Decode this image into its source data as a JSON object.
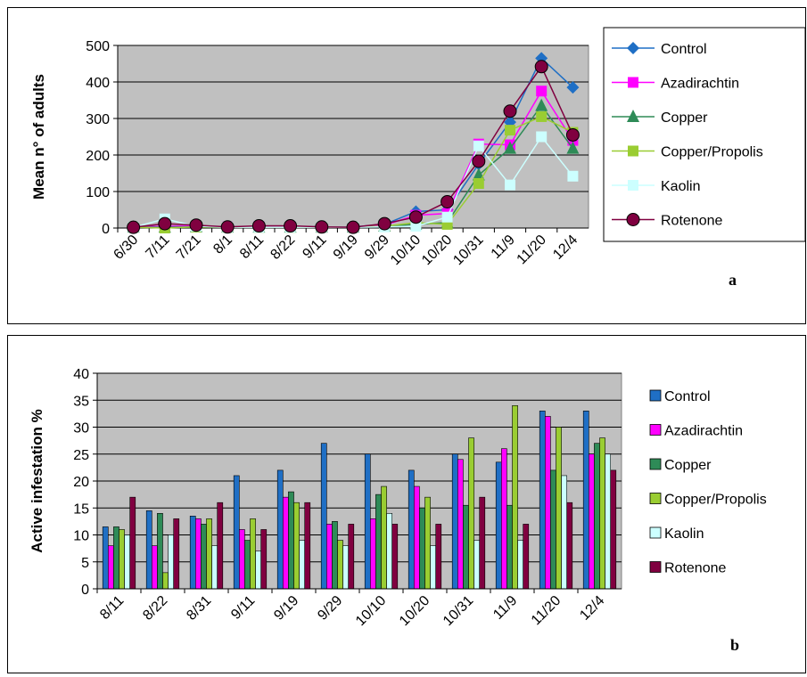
{
  "colors": {
    "plot_bg": "#C0C0C0",
    "Control": "#1F6FC5",
    "Azadirachtin": "#FF00FF",
    "Copper": "#2E8B57",
    "Copper/Propolis": "#9ACD32",
    "Kaolin": "#CCFFFF",
    "Rotenone": "#800040"
  },
  "chart_data": [
    {
      "type": "line",
      "panel_label": "a",
      "title": "",
      "xlabel": "",
      "ylabel": "Mean n° of adults",
      "ylim": [
        0,
        500
      ],
      "yticks": [
        0,
        100,
        200,
        300,
        400,
        500
      ],
      "grid": true,
      "legend": "right",
      "categories": [
        "6/30",
        "7/11",
        "7/21",
        "8/1",
        "8/11",
        "8/22",
        "9/11",
        "9/19",
        "9/29",
        "10/10",
        "10/20",
        "10/31",
        "11/9",
        "11/20",
        "12/4"
      ],
      "series": [
        {
          "name": "Control",
          "marker": "diamond",
          "values": [
            2,
            5,
            5,
            3,
            4,
            5,
            3,
            3,
            10,
            45,
            50,
            175,
            290,
            465,
            385
          ]
        },
        {
          "name": "Azadirachtin",
          "marker": "square",
          "values": [
            2,
            5,
            5,
            3,
            4,
            3,
            2,
            2,
            8,
            35,
            40,
            230,
            228,
            375,
            240
          ]
        },
        {
          "name": "Copper",
          "marker": "triangle",
          "values": [
            2,
            2,
            3,
            2,
            2,
            2,
            2,
            2,
            5,
            10,
            15,
            145,
            218,
            335,
            218
          ]
        },
        {
          "name": "Copper/Propolis",
          "marker": "square",
          "values": [
            2,
            0,
            3,
            2,
            2,
            2,
            2,
            2,
            5,
            15,
            10,
            122,
            268,
            305,
            262
          ]
        },
        {
          "name": "Kaolin",
          "marker": "square",
          "values": [
            2,
            25,
            5,
            2,
            2,
            2,
            2,
            2,
            3,
            5,
            30,
            225,
            118,
            250,
            142
          ]
        },
        {
          "name": "Rotenone",
          "marker": "circle",
          "values": [
            2,
            12,
            8,
            3,
            6,
            6,
            3,
            2,
            12,
            30,
            72,
            183,
            320,
            442,
            255
          ]
        }
      ]
    },
    {
      "type": "bar",
      "panel_label": "b",
      "title": "",
      "xlabel": "",
      "ylabel": "Active infestation %",
      "ylim": [
        0,
        40
      ],
      "yticks": [
        0,
        5,
        10,
        15,
        20,
        25,
        30,
        35,
        40
      ],
      "grid": true,
      "legend": "right",
      "categories": [
        "8/11",
        "8/22",
        "8/31",
        "9/11",
        "9/19",
        "9/29",
        "10/10",
        "10/20",
        "10/31",
        "11/9",
        "11/20",
        "12/4"
      ],
      "series": [
        {
          "name": "Control",
          "values": [
            11.5,
            14.5,
            13.5,
            21,
            22,
            27,
            25,
            22,
            25,
            23.5,
            33,
            33
          ]
        },
        {
          "name": "Azadirachtin",
          "values": [
            8,
            8,
            13,
            11,
            17,
            12,
            13,
            19,
            24,
            26,
            32,
            25
          ]
        },
        {
          "name": "Copper",
          "values": [
            11.5,
            14,
            12,
            9,
            18,
            12.5,
            17.5,
            15,
            15.5,
            15.5,
            22,
            27
          ]
        },
        {
          "name": "Copper/Propolis",
          "values": [
            11,
            3,
            13,
            13,
            16,
            9,
            19,
            17,
            28,
            34,
            30,
            28
          ]
        },
        {
          "name": "Kaolin",
          "values": [
            10,
            10,
            8,
            7,
            9,
            8,
            14,
            8,
            9,
            9,
            21,
            25
          ]
        },
        {
          "name": "Rotenone",
          "values": [
            17,
            13,
            16,
            11,
            16,
            12,
            12,
            12,
            17,
            12,
            16,
            22
          ]
        }
      ]
    }
  ]
}
